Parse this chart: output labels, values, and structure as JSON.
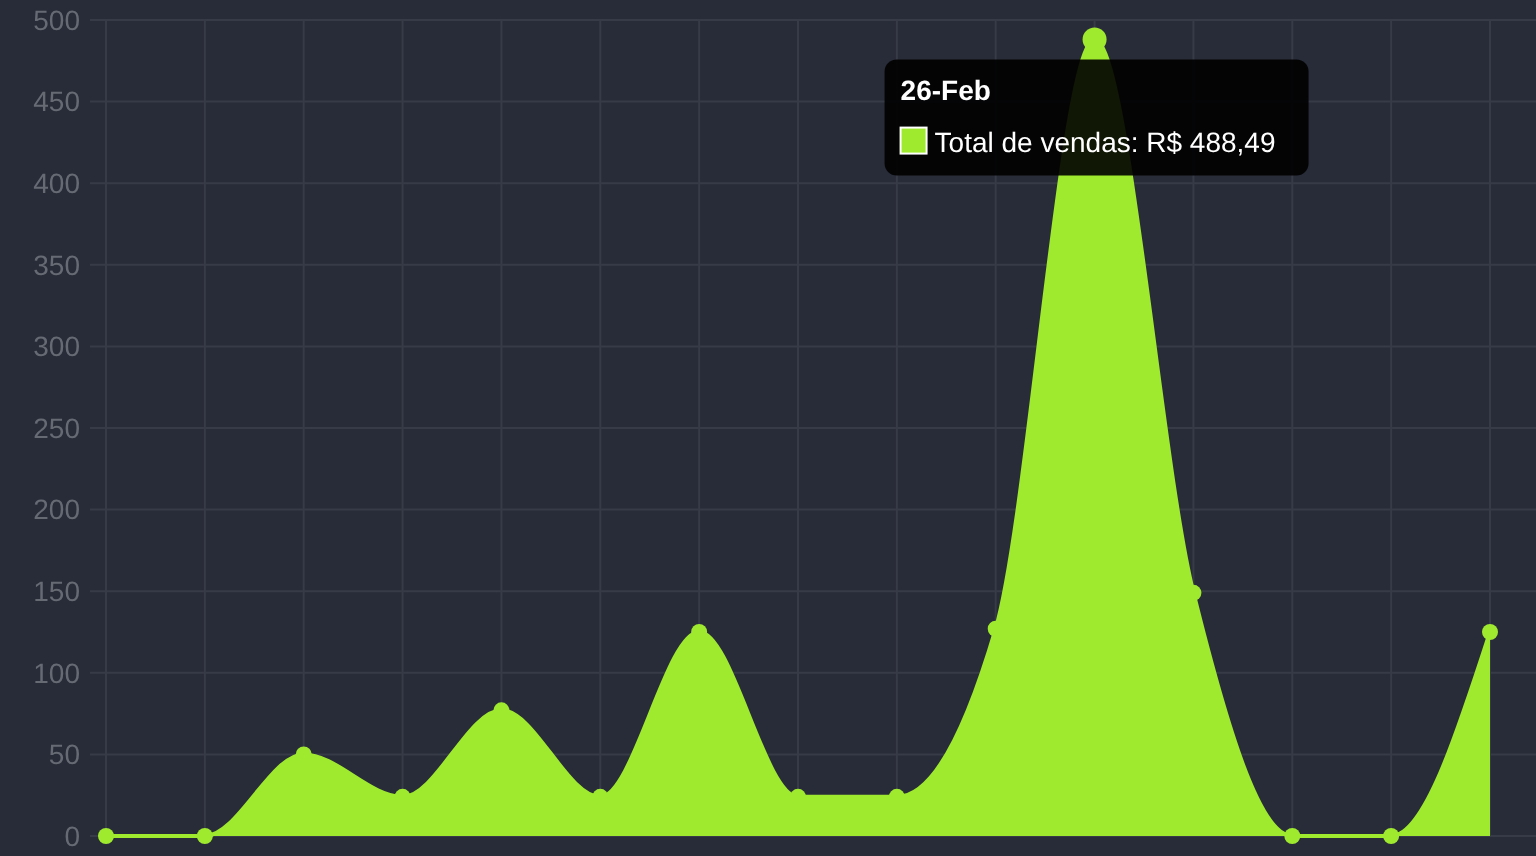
{
  "chart_data": {
    "type": "area",
    "categories": [
      null,
      null,
      null,
      null,
      null,
      null,
      null,
      null,
      null,
      null,
      null,
      null,
      null,
      null,
      null
    ],
    "series": [
      {
        "color": "#9fea2f",
        "values": [
          0,
          0,
          50,
          24,
          77,
          24,
          125,
          24,
          24,
          127,
          488,
          149,
          0,
          0,
          125
        ]
      }
    ],
    "ylim": [
      0,
      500
    ],
    "yticks": [
      0,
      50,
      100,
      150,
      200,
      250,
      300,
      350,
      400,
      450,
      500
    ],
    "grid": true,
    "marker": "circle",
    "annotations": [
      "26-Feb",
      "Total de vendas: R$ 488,49"
    ]
  }
}
